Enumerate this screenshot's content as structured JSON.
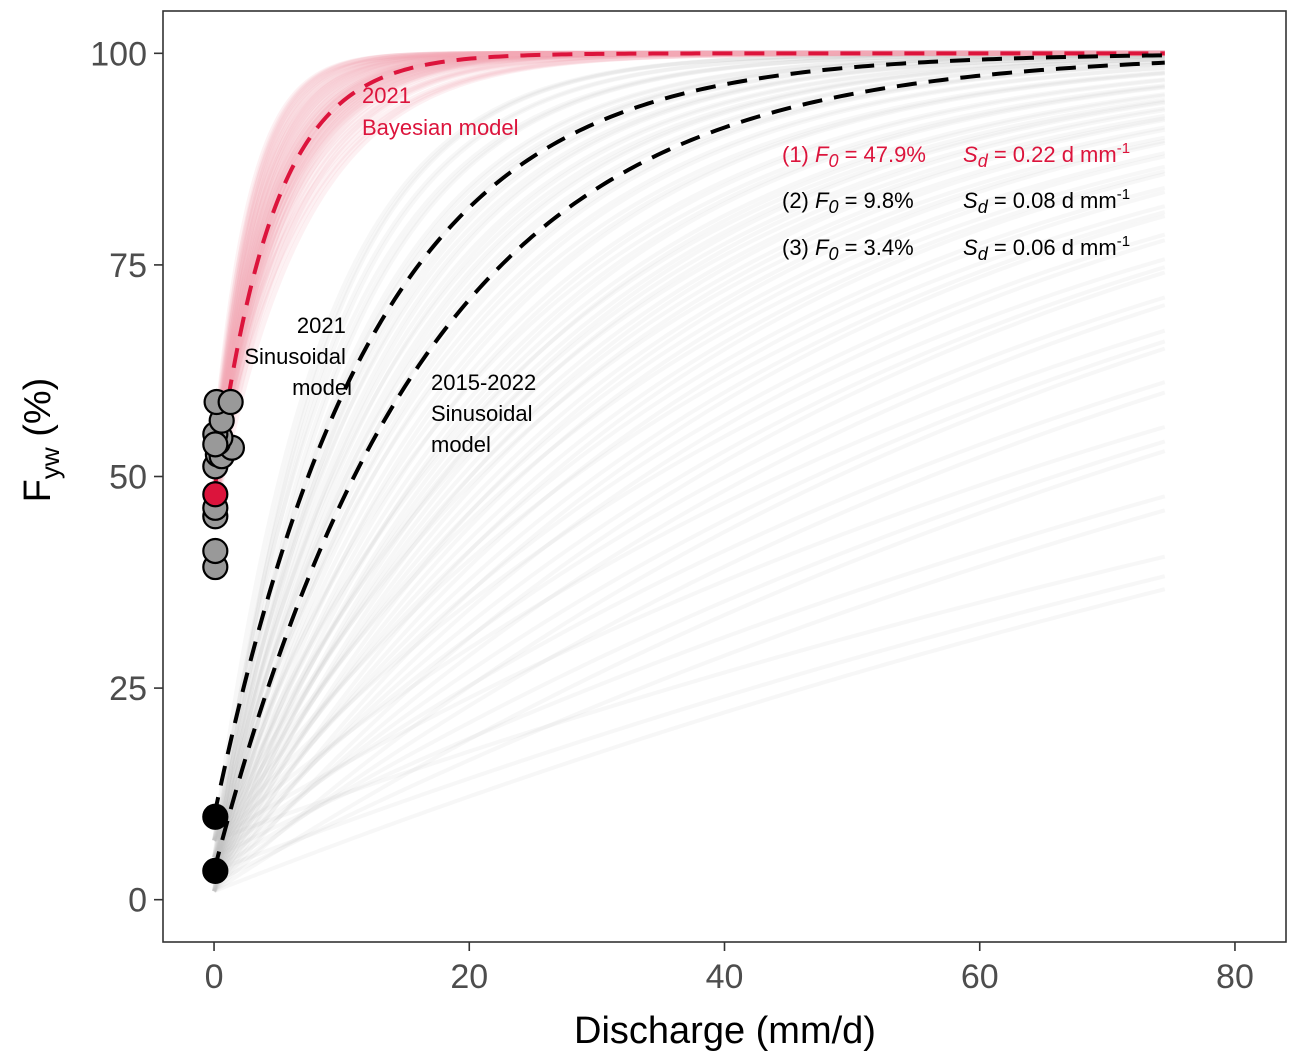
{
  "chart_data": {
    "type": "line",
    "xlabel": "Discharge (mm/d)",
    "ylabel_main": "F",
    "ylabel_sub": "yw",
    "ylabel_suffix": " (%)",
    "xlim": [
      -4,
      84
    ],
    "ylim": [
      -5,
      105
    ],
    "x_ticks": [
      0,
      20,
      40,
      60,
      80
    ],
    "x_tick_labels": [
      "0",
      "20",
      "40",
      "60",
      "80"
    ],
    "y_ticks": [
      0,
      25,
      50,
      75,
      100
    ],
    "y_tick_labels": [
      "0",
      "25",
      "50",
      "75",
      "100"
    ],
    "grid": false,
    "model_form": "F = 100 - (100 - F0) * exp(-Sd * Q)",
    "series": [
      {
        "F0": 47.9,
        "Sd": 0.22,
        "color": "#dc143c",
        "dashed": true
      },
      {
        "F0": 9.8,
        "Sd": 0.08,
        "color": "#000000",
        "dashed": true
      },
      {
        "F0": 3.4,
        "Sd": 0.06,
        "color": "#000000",
        "dashed": true
      }
    ],
    "x_range_curves": [
      0,
      74.5
    ],
    "ensemble": {
      "bayesian_color": "#f0a8b6",
      "sinusoidal_color": "#bdbdbd",
      "bayesian_Sd": [
        0.14,
        0.16,
        0.18,
        0.19,
        0.2,
        0.21,
        0.22,
        0.23,
        0.24,
        0.26,
        0.28,
        0.3,
        0.33,
        0.36
      ],
      "sinusoidal_Sd": [
        0.006,
        0.008,
        0.01,
        0.012,
        0.014,
        0.016,
        0.018,
        0.02,
        0.022,
        0.024,
        0.026,
        0.028,
        0.03,
        0.032,
        0.034,
        0.036,
        0.038,
        0.04,
        0.043,
        0.046,
        0.05,
        0.054,
        0.058,
        0.062,
        0.066,
        0.07,
        0.075,
        0.08,
        0.085,
        0.09,
        0.1,
        0.11,
        0.12
      ],
      "sinusoidal_F0": [
        1,
        2,
        3.4,
        5,
        7
      ]
    },
    "points": [
      {
        "x": 0.1,
        "y": 39.3,
        "fill": "#999999"
      },
      {
        "x": 0.1,
        "y": 41.2,
        "fill": "#999999"
      },
      {
        "x": 0.1,
        "y": 45.3,
        "fill": "#999999"
      },
      {
        "x": 0.1,
        "y": 46.3,
        "fill": "#999999"
      },
      {
        "x": 0.1,
        "y": 51.2,
        "fill": "#999999"
      },
      {
        "x": 0.3,
        "y": 52.6,
        "fill": "#999999"
      },
      {
        "x": 0.6,
        "y": 52.4,
        "fill": "#999999"
      },
      {
        "x": 1.4,
        "y": 53.4,
        "fill": "#999999"
      },
      {
        "x": 0.3,
        "y": 54.0,
        "fill": "#999999"
      },
      {
        "x": 0.5,
        "y": 54.6,
        "fill": "#999999"
      },
      {
        "x": 0.1,
        "y": 55.0,
        "fill": "#999999"
      },
      {
        "x": 0.6,
        "y": 56.6,
        "fill": "#999999"
      },
      {
        "x": 0.2,
        "y": 58.8,
        "fill": "#999999"
      },
      {
        "x": 1.3,
        "y": 58.8,
        "fill": "#999999"
      },
      {
        "x": 0.1,
        "y": 53.8,
        "fill": "#999999"
      },
      {
        "x": 0.1,
        "y": 47.9,
        "fill": "#dc143c"
      },
      {
        "x": 0.1,
        "y": 9.8,
        "fill": "#000000"
      },
      {
        "x": 0.1,
        "y": 3.4,
        "fill": "#000000"
      }
    ],
    "annotations": {
      "bayes_l1": "2021",
      "bayes_l2": "Bayesian model",
      "sin_l1": "2021",
      "sin_l2": "Sinusoidal",
      "sin_l3": "model",
      "sin15_l1": "2015-2022",
      "sin15_l2": "Sinusoidal",
      "sin15_l3": "model"
    },
    "legend": [
      {
        "prefix": "(1) ",
        "f0_value": " = 47.9%",
        "sd_value": " = 0.22 d mm",
        "color": "#dc143c"
      },
      {
        "prefix": "(2) ",
        "f0_value": " = 9.8%",
        "sd_value": " = 0.08 d mm",
        "color": "#000000"
      },
      {
        "prefix": "(3) ",
        "f0_value": " = 3.4%",
        "sd_value": " = 0.06 d mm",
        "color": "#000000"
      }
    ],
    "legend_symbols": {
      "f0_letter": "F",
      "f0_sub": "0",
      "sd_letter": "S",
      "sd_sub": "d",
      "unit_sup": "-1"
    }
  }
}
